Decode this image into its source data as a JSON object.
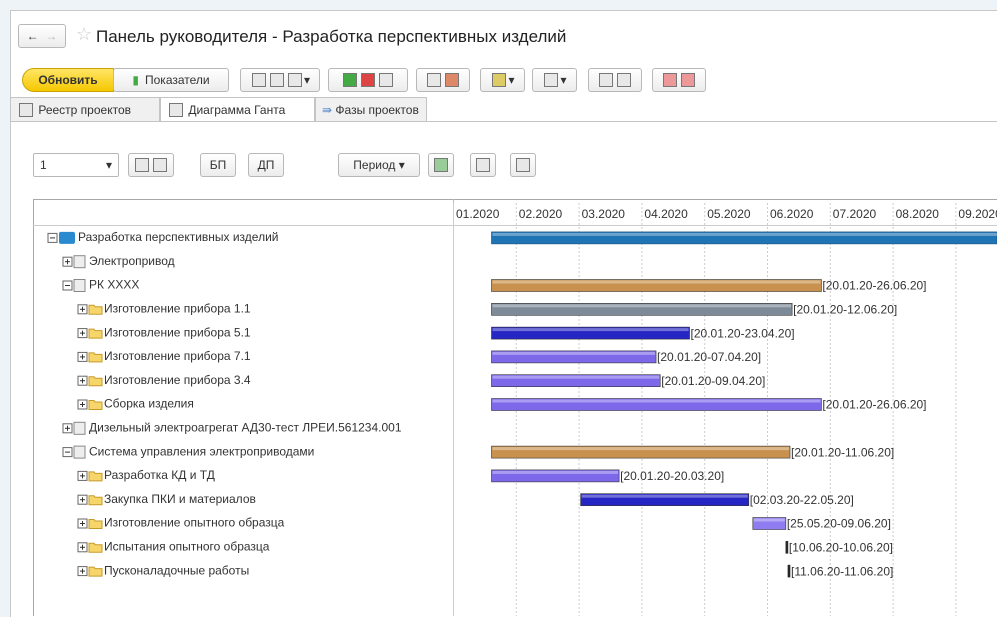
{
  "header": {
    "title": "Панель руководителя - Разработка перспективных изделий"
  },
  "toolbar": {
    "refresh": "Обновить",
    "indicators": "Показатели"
  },
  "tabs": [
    "Реестр проектов",
    "Диаграмма Ганта",
    "Фазы проектов"
  ],
  "filter": {
    "level": "1",
    "bp": "БП",
    "dp": "ДП",
    "period": "Период"
  },
  "gantt": {
    "months": [
      "01.2020",
      "02.2020",
      "03.2020",
      "04.2020",
      "05.2020",
      "06.2020",
      "07.2020",
      "08.2020",
      "09.2020"
    ],
    "rows": [
      {
        "name": "Разработка перспективных изделий",
        "level": 0,
        "expanded": true,
        "color": "#1f74b3"
      },
      {
        "name": "Электропривод",
        "level": 1,
        "expanded": false
      },
      {
        "name": "РК XXXX",
        "level": 1,
        "expanded": true,
        "label": "[20.01.20-26.06.20]",
        "color": "#c8924e"
      },
      {
        "name": "Изготовление прибора 1.1",
        "level": 2,
        "expanded": false,
        "label": "[20.01.20-12.06.20]",
        "color": "#7d8a98"
      },
      {
        "name": "Изготовление прибора 5.1",
        "level": 2,
        "expanded": false,
        "label": "[20.01.20-23.04.20]",
        "color": "#2626c4"
      },
      {
        "name": "Изготовление прибора 7.1",
        "level": 2,
        "expanded": false,
        "label": "[20.01.20-07.04.20]",
        "color": "#7d68ea"
      },
      {
        "name": "Изготовление прибора 3.4",
        "level": 2,
        "expanded": false,
        "label": "[20.01.20-09.04.20]",
        "color": "#7d68ea"
      },
      {
        "name": "Сборка изделия",
        "level": 2,
        "expanded": false,
        "label": "[20.01.20-26.06.20]",
        "color": "#7d68ea"
      },
      {
        "name": "Дизельный электроагрегат АД30-тест ЛРЕИ.561234.001",
        "level": 1,
        "expanded": false
      },
      {
        "name": "Система управления электроприводами",
        "level": 1,
        "expanded": true,
        "label": "[20.01.20-11.06.20]",
        "color": "#c8924e"
      },
      {
        "name": "Разработка КД и ТД",
        "level": 2,
        "expanded": false,
        "label": "[20.01.20-20.03.20]",
        "color": "#7d68ea"
      },
      {
        "name": "Закупка ПКИ и материалов",
        "level": 2,
        "expanded": false,
        "label": "[02.03.20-22.05.20]",
        "color": "#2626c4"
      },
      {
        "name": "Изготовление опытного образца",
        "level": 2,
        "expanded": false,
        "label": "[25.05.20-09.06.20]",
        "color": "#8f7cf0"
      },
      {
        "name": "Испытания опытного образца",
        "level": 2,
        "expanded": false,
        "label": "[10.06.20-10.06.20]",
        "color": "#222"
      },
      {
        "name": "Пусконаладочные работы",
        "level": 2,
        "expanded": false,
        "label": "[11.06.20-11.06.20]",
        "color": "#222"
      }
    ]
  }
}
